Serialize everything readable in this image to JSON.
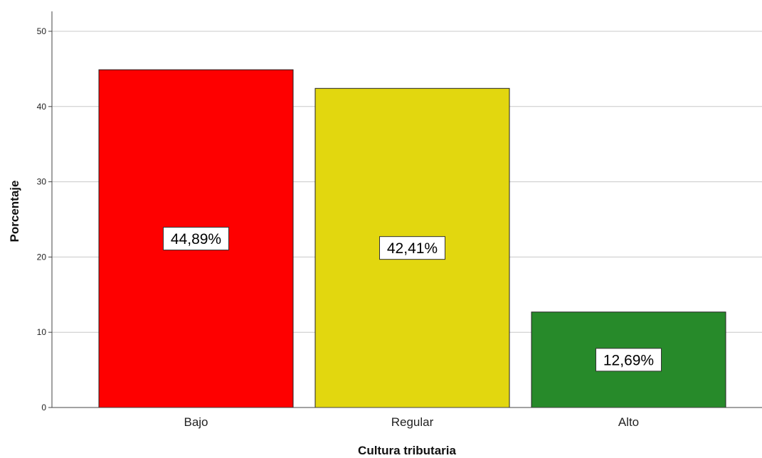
{
  "chart_data": {
    "type": "bar",
    "title": "",
    "xlabel": "Cultura tributaria",
    "ylabel": "Porcentaje",
    "ylim": [
      0,
      50
    ],
    "yticks": [
      "0",
      "10",
      "20",
      "30",
      "40",
      "50"
    ],
    "grid": true,
    "categories": [
      "Bajo",
      "Regular",
      "Alto"
    ],
    "values": [
      44.89,
      42.41,
      12.69
    ],
    "data_labels": [
      "44,89%",
      "42,41%",
      "12,69%"
    ],
    "colors": [
      "#fe0000",
      "#e2d70f",
      "#278a2a"
    ]
  }
}
